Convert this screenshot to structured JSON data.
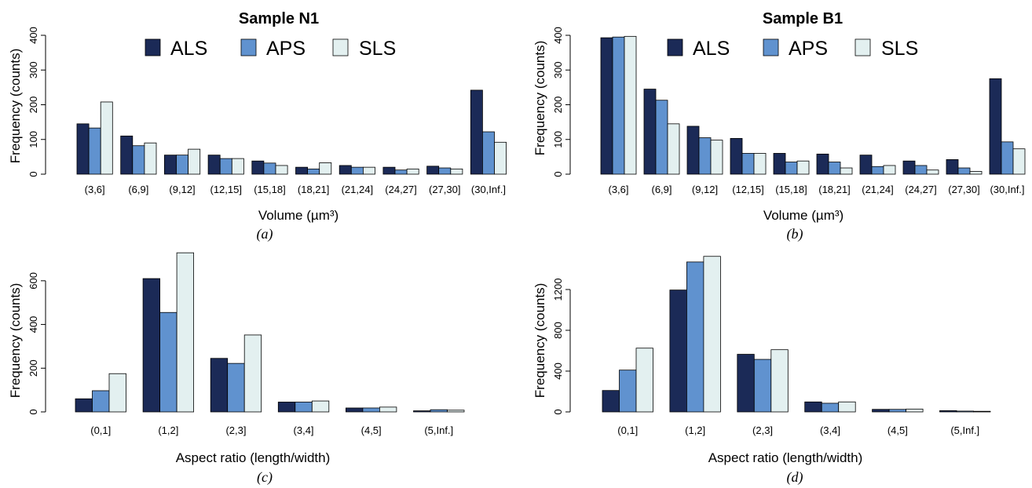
{
  "colors": {
    "ALS": "#1b2a57",
    "APS": "#6092cf",
    "SLS": "#e3f0f0"
  },
  "chart_data": [
    {
      "type": "bar",
      "caption": "(a)",
      "title": "Sample N1",
      "xlabel": "Volume (µm³)",
      "ylabel": "Frequency (counts)",
      "ylim": [
        0,
        400
      ],
      "yticks": [
        "0",
        "100",
        "200",
        "300",
        "400"
      ],
      "legend": "top",
      "categories": [
        "(3,6]",
        "(6,9]",
        "(9,12]",
        "(12,15]",
        "(15,18]",
        "(18,21]",
        "(21,24]",
        "(24,27]",
        "(27,30]",
        "(30,Inf.]"
      ],
      "series": [
        {
          "name": "ALS",
          "values": [
            145,
            110,
            55,
            55,
            38,
            20,
            25,
            20,
            23,
            242
          ]
        },
        {
          "name": "APS",
          "values": [
            133,
            82,
            55,
            45,
            32,
            15,
            20,
            12,
            18,
            122
          ]
        },
        {
          "name": "SLS",
          "values": [
            208,
            90,
            72,
            45,
            25,
            33,
            20,
            15,
            15,
            92
          ]
        }
      ]
    },
    {
      "type": "bar",
      "caption": "(b)",
      "title": "Sample B1",
      "xlabel": "Volume (µm³)",
      "ylabel": "Frequency (counts)",
      "ylim": [
        0,
        400
      ],
      "yticks": [
        "0",
        "100",
        "200",
        "300",
        "400"
      ],
      "legend": "top",
      "categories": [
        "(3,6]",
        "(6,9]",
        "(9,12]",
        "(12,15]",
        "(15,18]",
        "(18,21]",
        "(21,24]",
        "(24,27]",
        "(27,30]",
        "(30,Inf.]"
      ],
      "series": [
        {
          "name": "ALS",
          "values": [
            393,
            245,
            138,
            103,
            60,
            58,
            55,
            38,
            42,
            275
          ]
        },
        {
          "name": "APS",
          "values": [
            395,
            213,
            105,
            60,
            35,
            35,
            22,
            25,
            18,
            93
          ]
        },
        {
          "name": "SLS",
          "values": [
            397,
            145,
            98,
            60,
            38,
            18,
            25,
            12,
            8,
            73
          ]
        }
      ]
    },
    {
      "type": "bar",
      "caption": "(c)",
      "title": "",
      "xlabel": "Aspect ratio (length/width)",
      "ylabel": "Frequency (counts)",
      "ylim": [
        0,
        700
      ],
      "yticks": [
        "0",
        "200",
        "400",
        "600"
      ],
      "legend": "none",
      "categories": [
        "(0,1]",
        "(1,2]",
        "(2,3]",
        "(3,4]",
        "(4,5]",
        "(5,Inf.]"
      ],
      "series": [
        {
          "name": "ALS",
          "values": [
            60,
            610,
            245,
            45,
            18,
            5
          ]
        },
        {
          "name": "APS",
          "values": [
            97,
            455,
            222,
            45,
            18,
            10
          ]
        },
        {
          "name": "SLS",
          "values": [
            175,
            728,
            352,
            50,
            22,
            8
          ]
        }
      ]
    },
    {
      "type": "bar",
      "caption": "(d)",
      "title": "",
      "xlabel": "Aspect ratio (length/width)",
      "ylabel": "Frequency (counts)",
      "ylim": [
        0,
        1500
      ],
      "yticks": [
        "0",
        "400",
        "800",
        "1200"
      ],
      "legend": "none",
      "categories": [
        "(0,1]",
        "(1,2]",
        "(2,3]",
        "(3,4]",
        "(4,5]",
        "(5,Inf.]"
      ],
      "series": [
        {
          "name": "ALS",
          "values": [
            210,
            1195,
            565,
            98,
            25,
            12
          ]
        },
        {
          "name": "APS",
          "values": [
            410,
            1470,
            515,
            85,
            25,
            8
          ]
        },
        {
          "name": "SLS",
          "values": [
            625,
            1525,
            610,
            98,
            28,
            6
          ]
        }
      ]
    }
  ]
}
